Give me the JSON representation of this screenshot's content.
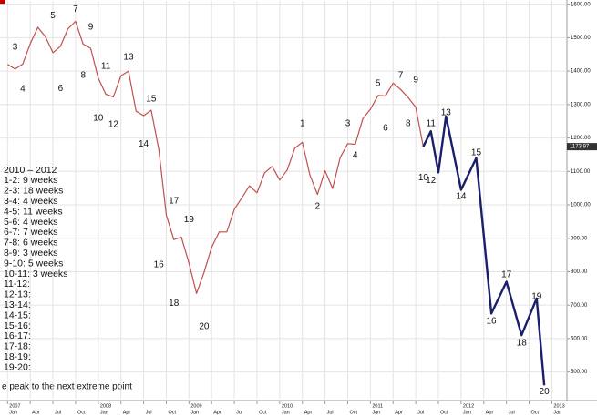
{
  "chart_data": {
    "type": "line",
    "xlim": [
      "2006-12",
      "2013-03"
    ],
    "ylim": [
      420,
      1610
    ],
    "yticks": [
      {
        "value": 1600,
        "label": "1600.00"
      },
      {
        "value": 1500,
        "label": "1500.00"
      },
      {
        "value": 1400,
        "label": "1400.00"
      },
      {
        "value": 1300,
        "label": "1300.00"
      },
      {
        "value": 1200,
        "label": "1200.00"
      },
      {
        "value": 1100,
        "label": "1100.00"
      },
      {
        "value": 1000,
        "label": "1000.00"
      },
      {
        "value": 900,
        "label": "900.00"
      },
      {
        "value": 800,
        "label": "800.00"
      },
      {
        "value": 700,
        "label": "700.00"
      },
      {
        "value": 600,
        "label": "600.00"
      },
      {
        "value": 500,
        "label": "500.00"
      }
    ],
    "year_ticks": [
      {
        "value": "2007-01",
        "label": "2007"
      },
      {
        "value": "2008-01",
        "label": "2008"
      },
      {
        "value": "2009-01",
        "label": "2009"
      },
      {
        "value": "2010-01",
        "label": "2010"
      },
      {
        "value": "2011-01",
        "label": "2011"
      },
      {
        "value": "2012-01",
        "label": "2012"
      },
      {
        "value": "2013-01",
        "label": "2013"
      }
    ],
    "xticks": [
      {
        "value": "2007-01",
        "label": "Jan"
      },
      {
        "value": "2007-04",
        "label": "Apr"
      },
      {
        "value": "2007-07",
        "label": "Jul"
      },
      {
        "value": "2007-10",
        "label": "Oct"
      },
      {
        "value": "2008-01",
        "label": "Jan"
      },
      {
        "value": "2008-04",
        "label": "Apr"
      },
      {
        "value": "2008-07",
        "label": "Jul"
      },
      {
        "value": "2008-10",
        "label": "Oct"
      },
      {
        "value": "2009-01",
        "label": "Jan"
      },
      {
        "value": "2009-04",
        "label": "Apr"
      },
      {
        "value": "2009-07",
        "label": "Jul"
      },
      {
        "value": "2009-10",
        "label": "Oct"
      },
      {
        "value": "2010-01",
        "label": "Jan"
      },
      {
        "value": "2010-04",
        "label": "Apr"
      },
      {
        "value": "2010-07",
        "label": "Jul"
      },
      {
        "value": "2010-10",
        "label": "Oct"
      },
      {
        "value": "2011-01",
        "label": "Jan"
      },
      {
        "value": "2011-04",
        "label": "Apr"
      },
      {
        "value": "2011-07",
        "label": "Jul"
      },
      {
        "value": "2011-10",
        "label": "Oct"
      },
      {
        "value": "2012-01",
        "label": "Jan"
      },
      {
        "value": "2012-04",
        "label": "Apr"
      },
      {
        "value": "2012-07",
        "label": "Jul"
      },
      {
        "value": "2012-10",
        "label": "Oct"
      },
      {
        "value": "2013-01",
        "label": "Jan"
      }
    ],
    "grid": true,
    "series": [
      {
        "color": "#c0504d",
        "x": [
          "2007-01",
          "2007-02",
          "2007-03",
          "2007-04",
          "2007-05",
          "2007-06",
          "2007-07",
          "2007-08",
          "2007-09",
          "2007-10",
          "2007-11",
          "2007-12",
          "2008-01",
          "2008-02",
          "2008-03",
          "2008-04",
          "2008-05",
          "2008-06",
          "2008-07",
          "2008-08",
          "2008-09",
          "2008-10",
          "2008-11",
          "2008-12",
          "2009-01",
          "2009-02",
          "2009-03",
          "2009-04",
          "2009-05",
          "2009-06",
          "2009-07",
          "2009-08",
          "2009-09",
          "2009-10",
          "2009-11",
          "2009-12",
          "2010-01",
          "2010-02",
          "2010-03",
          "2010-04",
          "2010-05",
          "2010-06",
          "2010-07",
          "2010-08",
          "2010-09",
          "2010-10",
          "2010-11",
          "2010-12",
          "2011-01",
          "2011-02",
          "2011-03",
          "2011-04",
          "2011-05",
          "2011-06",
          "2011-07",
          "2011-08"
        ],
        "values": [
          1420,
          1406,
          1421,
          1482,
          1531,
          1503,
          1455,
          1474,
          1527,
          1549,
          1481,
          1468,
          1379,
          1331,
          1323,
          1386,
          1400,
          1280,
          1267,
          1283,
          1166,
          969,
          896,
          903,
          826,
          735,
          798,
          873,
          919,
          919,
          987,
          1021,
          1057,
          1036,
          1096,
          1115,
          1074,
          1104,
          1169,
          1187,
          1089,
          1031,
          1102,
          1049,
          1141,
          1183,
          1181,
          1258,
          1286,
          1327,
          1326,
          1364,
          1345,
          1321,
          1292,
          1174
        ]
      },
      {
        "color": "#1a1f6b",
        "x": [
          "2011-08",
          "2011-09",
          "2011-10",
          "2011-11",
          "2012-01",
          "2012-03",
          "2012-05",
          "2012-07",
          "2012-09",
          "2012-11",
          "2012-12"
        ],
        "values": [
          1174,
          1220,
          1097,
          1265,
          1045,
          1140,
          675,
          770,
          610,
          720,
          460
        ]
      }
    ],
    "price_tag": 1173.97,
    "annotations": [
      {
        "text": "3",
        "x": "2007-02",
        "y": 1471
      },
      {
        "text": "4",
        "x": "2007-03",
        "y": 1346
      },
      {
        "text": "5",
        "x": "2007-07",
        "y": 1566
      },
      {
        "text": "6",
        "x": "2007-08",
        "y": 1348
      },
      {
        "text": "7",
        "x": "2007-10",
        "y": 1585
      },
      {
        "text": "8",
        "x": "2007-11",
        "y": 1387
      },
      {
        "text": "9",
        "x": "2007-12",
        "y": 1531
      },
      {
        "text": "10",
        "x": "2008-01",
        "y": 1259
      },
      {
        "text": "11",
        "x": "2008-02",
        "y": 1414
      },
      {
        "text": "12",
        "x": "2008-03",
        "y": 1240
      },
      {
        "text": "13",
        "x": "2008-05",
        "y": 1441
      },
      {
        "text": "14",
        "x": "2008-07",
        "y": 1182
      },
      {
        "text": "15",
        "x": "2008-08",
        "y": 1316
      },
      {
        "text": "16",
        "x": "2008-09",
        "y": 820
      },
      {
        "text": "17",
        "x": "2008-11",
        "y": 1011
      },
      {
        "text": "18",
        "x": "2008-11",
        "y": 705
      },
      {
        "text": "19",
        "x": "2009-01",
        "y": 956
      },
      {
        "text": "20",
        "x": "2009-03",
        "y": 635
      },
      {
        "text": "1",
        "x": "2010-04",
        "y": 1243
      },
      {
        "text": "2",
        "x": "2010-06",
        "y": 995
      },
      {
        "text": "3",
        "x": "2010-10",
        "y": 1243
      },
      {
        "text": "4",
        "x": "2010-11",
        "y": 1147
      },
      {
        "text": "5",
        "x": "2011-02",
        "y": 1363
      },
      {
        "text": "6",
        "x": "2011-03",
        "y": 1229
      },
      {
        "text": "7",
        "x": "2011-05",
        "y": 1387
      },
      {
        "text": "8",
        "x": "2011-06",
        "y": 1243
      },
      {
        "text": "9",
        "x": "2011-07",
        "y": 1374
      },
      {
        "text": "10",
        "x": "2011-08",
        "y": 1081
      },
      {
        "text": "11",
        "x": "2011-09",
        "y": 1243
      },
      {
        "text": "12",
        "x": "2011-09",
        "y": 1073
      },
      {
        "text": "13",
        "x": "2011-11",
        "y": 1276
      },
      {
        "text": "14",
        "x": "2012-01",
        "y": 1025
      },
      {
        "text": "15",
        "x": "2012-03",
        "y": 1156
      },
      {
        "text": "16",
        "x": "2012-05",
        "y": 652
      },
      {
        "text": "17",
        "x": "2012-07",
        "y": 791
      },
      {
        "text": "18",
        "x": "2012-09",
        "y": 586
      },
      {
        "text": "19",
        "x": "2012-11",
        "y": 725
      },
      {
        "text": "20",
        "x": "2012-12",
        "y": 441
      }
    ],
    "notes": [
      "2010 – 2012",
      "1-2:  9 weeks",
      "2-3:  18 weeks",
      "3-4:  4 weeks",
      "4-5:  11 weeks",
      "5-6:  4 weeks",
      "6-7:  7 weeks",
      "7-8:  6 weeks",
      "8-9:  3 weeks",
      "9-10:  5 weeks",
      "10-11:  3 weeks",
      "11-12:",
      "12-13:",
      "13-14:",
      "14-15:",
      "15-16:",
      "16-17:",
      "17-18:",
      "18-19:",
      "19-20:"
    ],
    "footnote": "e peak to the next extreme point"
  }
}
